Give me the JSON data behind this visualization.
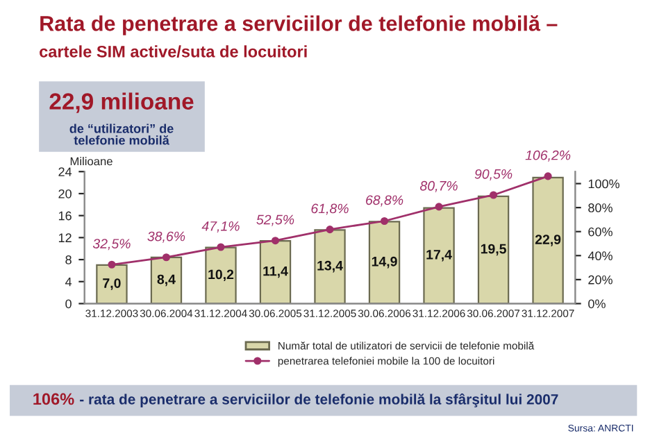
{
  "chart_data": {
    "type": "bar",
    "title": "Rata de penetrare a serviciilor de telefonie mobilă –",
    "subtitle": "cartele SIM active/suta de locuitori",
    "ylabel": "Milioane",
    "categories": [
      "31.12.2003",
      "30.06.2004",
      "31.12.2004",
      "30.06.2005",
      "31.12.2005",
      "30.06.2006",
      "31.12.2006",
      "30.06.2007",
      "31.12.2007"
    ],
    "series": [
      {
        "name": "Număr total de utilizatori de servicii de telefonie mobilă",
        "color": "#d9d7aa",
        "values": [
          7.0,
          8.4,
          10.2,
          11.4,
          13.4,
          14.9,
          17.4,
          19.5,
          22.9
        ],
        "value_labels": [
          "7,0",
          "8,4",
          "10,2",
          "11,4",
          "13,4",
          "14,9",
          "17,4",
          "19,5",
          "22,9"
        ]
      },
      {
        "name": "penetrarea telefoniei mobile la 100 de locuitori",
        "type": "line",
        "axis": "y2",
        "color": "#a0306a",
        "marker": "circle",
        "values": [
          32.5,
          38.6,
          47.1,
          52.5,
          61.8,
          68.8,
          80.7,
          90.5,
          106.2
        ],
        "value_labels": [
          "32,5%",
          "38,6%",
          "47,1%",
          "52,5%",
          "61,8%",
          "68,8%",
          "80,7%",
          "90,5%",
          "106,2%"
        ]
      }
    ],
    "ylim": [
      0,
      24
    ],
    "yticks": [
      0,
      4,
      8,
      12,
      16,
      20,
      24
    ],
    "y2lim": [
      0,
      110
    ],
    "y2ticks": [
      {
        "value": 0,
        "label": "0%"
      },
      {
        "value": 20,
        "label": "20%"
      },
      {
        "value": 40,
        "label": "40%"
      },
      {
        "value": 60,
        "label": "60%"
      },
      {
        "value": 80,
        "label": "80%"
      },
      {
        "value": 100,
        "label": "100%"
      }
    ],
    "grid": false,
    "legend": "bottom",
    "annotations": [
      "22,9 milioane",
      "de “utilizatori” de\ntelefonie mobilă",
      "106%",
      "- rata de penetrare a serviciilor de telefonie mobilă la sfârşitul lui 2007",
      "Sursa: ANRCTI"
    ]
  }
}
